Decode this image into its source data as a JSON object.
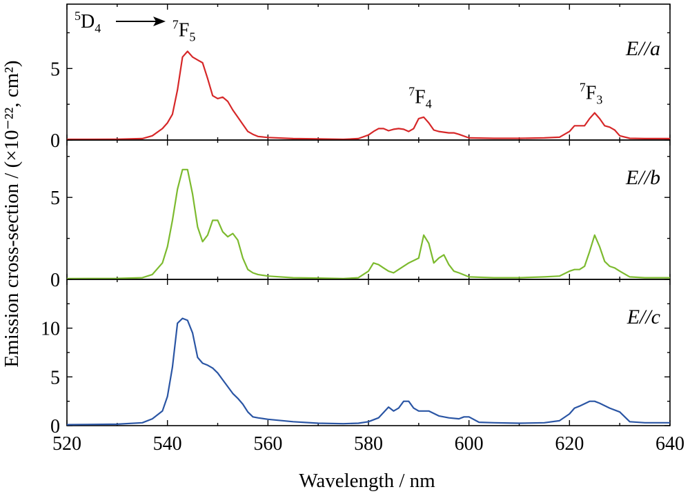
{
  "chart_data": {
    "type": "line",
    "xlabel": "Wavelength / nm",
    "ylabel": "Emission cross-section / (×10⁻²², cm²)",
    "xlim": [
      520,
      640
    ],
    "xticks": [
      520,
      540,
      560,
      580,
      600,
      620,
      640
    ],
    "transition_label": {
      "from": "D",
      "from_sup": "5",
      "from_sub": "4"
    },
    "peak_labels": [
      {
        "panel": 0,
        "x": 544,
        "y": 6.4,
        "base": "F",
        "sup": "7",
        "sub": "5"
      },
      {
        "panel": 0,
        "x": 591,
        "y": 1.7,
        "base": "F",
        "sup": "7",
        "sub": "4"
      },
      {
        "panel": 0,
        "x": 625,
        "y": 2.0,
        "base": "F",
        "sup": "7",
        "sub": "3"
      }
    ],
    "panels": [
      {
        "label": "E//a",
        "color": "#d62728",
        "ylim": [
          0,
          9.5
        ],
        "yticks": [
          0,
          5
        ],
        "x": [
          520,
          530,
          535,
          537,
          539,
          540,
          541,
          542,
          543,
          544,
          545,
          546,
          547,
          548,
          549,
          550,
          551,
          552,
          553,
          554,
          555,
          556,
          557,
          558,
          560,
          565,
          570,
          575,
          578,
          580,
          581,
          582,
          583,
          584,
          585,
          586,
          587,
          588,
          589,
          590,
          591,
          592,
          593,
          594,
          595,
          596,
          597,
          598,
          600,
          605,
          610,
          615,
          618,
          620,
          621,
          622,
          623,
          624,
          625,
          626,
          627,
          628,
          629,
          630,
          632,
          635,
          640
        ],
        "y": [
          0.05,
          0.06,
          0.1,
          0.3,
          0.8,
          1.2,
          1.8,
          3.5,
          5.8,
          6.2,
          5.8,
          5.6,
          5.4,
          4.3,
          3.1,
          2.9,
          3.0,
          2.7,
          2.1,
          1.6,
          1.1,
          0.6,
          0.4,
          0.25,
          0.18,
          0.1,
          0.08,
          0.05,
          0.1,
          0.35,
          0.6,
          0.8,
          0.8,
          0.65,
          0.75,
          0.8,
          0.75,
          0.6,
          0.8,
          1.5,
          1.6,
          1.2,
          0.7,
          0.6,
          0.55,
          0.5,
          0.5,
          0.4,
          0.15,
          0.12,
          0.12,
          0.15,
          0.2,
          0.6,
          1.0,
          1.0,
          1.0,
          1.5,
          1.9,
          1.5,
          1.0,
          0.9,
          0.7,
          0.3,
          0.12,
          0.1,
          0.1
        ]
      },
      {
        "label": "E//b",
        "color": "#7cba2e",
        "ylim": [
          0,
          8.5
        ],
        "yticks": [
          0,
          5
        ],
        "x": [
          520,
          530,
          535,
          537,
          539,
          540,
          541,
          542,
          543,
          544,
          545,
          546,
          547,
          548,
          549,
          550,
          551,
          552,
          553,
          554,
          555,
          556,
          557,
          558,
          560,
          565,
          570,
          575,
          578,
          580,
          581,
          582,
          583,
          584,
          585,
          586,
          588,
          590,
          591,
          592,
          593,
          594,
          595,
          596,
          597,
          598,
          600,
          605,
          610,
          615,
          618,
          620,
          621,
          622,
          623,
          624,
          625,
          626,
          627,
          628,
          629,
          630,
          632,
          635,
          640
        ],
        "y": [
          0.05,
          0.06,
          0.1,
          0.3,
          1.0,
          2.0,
          3.6,
          5.5,
          6.7,
          6.7,
          5.2,
          3.2,
          2.3,
          2.7,
          3.6,
          3.6,
          2.9,
          2.6,
          2.8,
          2.4,
          1.3,
          0.6,
          0.4,
          0.3,
          0.2,
          0.1,
          0.08,
          0.05,
          0.1,
          0.5,
          1.0,
          0.9,
          0.7,
          0.5,
          0.4,
          0.6,
          1.0,
          1.3,
          2.7,
          2.2,
          1.0,
          1.3,
          1.5,
          0.9,
          0.5,
          0.4,
          0.15,
          0.1,
          0.1,
          0.15,
          0.2,
          0.5,
          0.6,
          0.6,
          0.8,
          1.7,
          2.7,
          2.0,
          1.1,
          0.8,
          0.7,
          0.5,
          0.15,
          0.1,
          0.1
        ]
      },
      {
        "label": "E//c",
        "color": "#2a55a4",
        "ylim": [
          0,
          15
        ],
        "yticks": [
          0,
          5,
          10
        ],
        "x": [
          520,
          530,
          535,
          537,
          539,
          540,
          541,
          542,
          543,
          544,
          545,
          546,
          547,
          548,
          549,
          550,
          551,
          552,
          553,
          554,
          555,
          556,
          557,
          558,
          560,
          565,
          570,
          575,
          578,
          580,
          582,
          584,
          585,
          586,
          587,
          588,
          589,
          590,
          592,
          594,
          596,
          598,
          599,
          600,
          602,
          605,
          610,
          615,
          618,
          620,
          621,
          622,
          624,
          625,
          626,
          628,
          630,
          632,
          635,
          640
        ],
        "y": [
          0.1,
          0.15,
          0.3,
          0.7,
          1.5,
          3.0,
          6.0,
          10.5,
          11.0,
          10.8,
          9.5,
          7.0,
          6.4,
          6.2,
          5.9,
          5.4,
          4.7,
          4.0,
          3.3,
          2.8,
          2.2,
          1.4,
          0.9,
          0.8,
          0.65,
          0.4,
          0.25,
          0.2,
          0.25,
          0.4,
          0.8,
          1.9,
          1.5,
          1.8,
          2.5,
          2.5,
          1.8,
          1.5,
          1.5,
          1.0,
          0.8,
          0.7,
          0.9,
          0.9,
          0.35,
          0.3,
          0.25,
          0.3,
          0.5,
          1.2,
          1.8,
          2.0,
          2.5,
          2.5,
          2.3,
          1.8,
          1.4,
          0.4,
          0.3,
          0.3
        ]
      }
    ]
  }
}
